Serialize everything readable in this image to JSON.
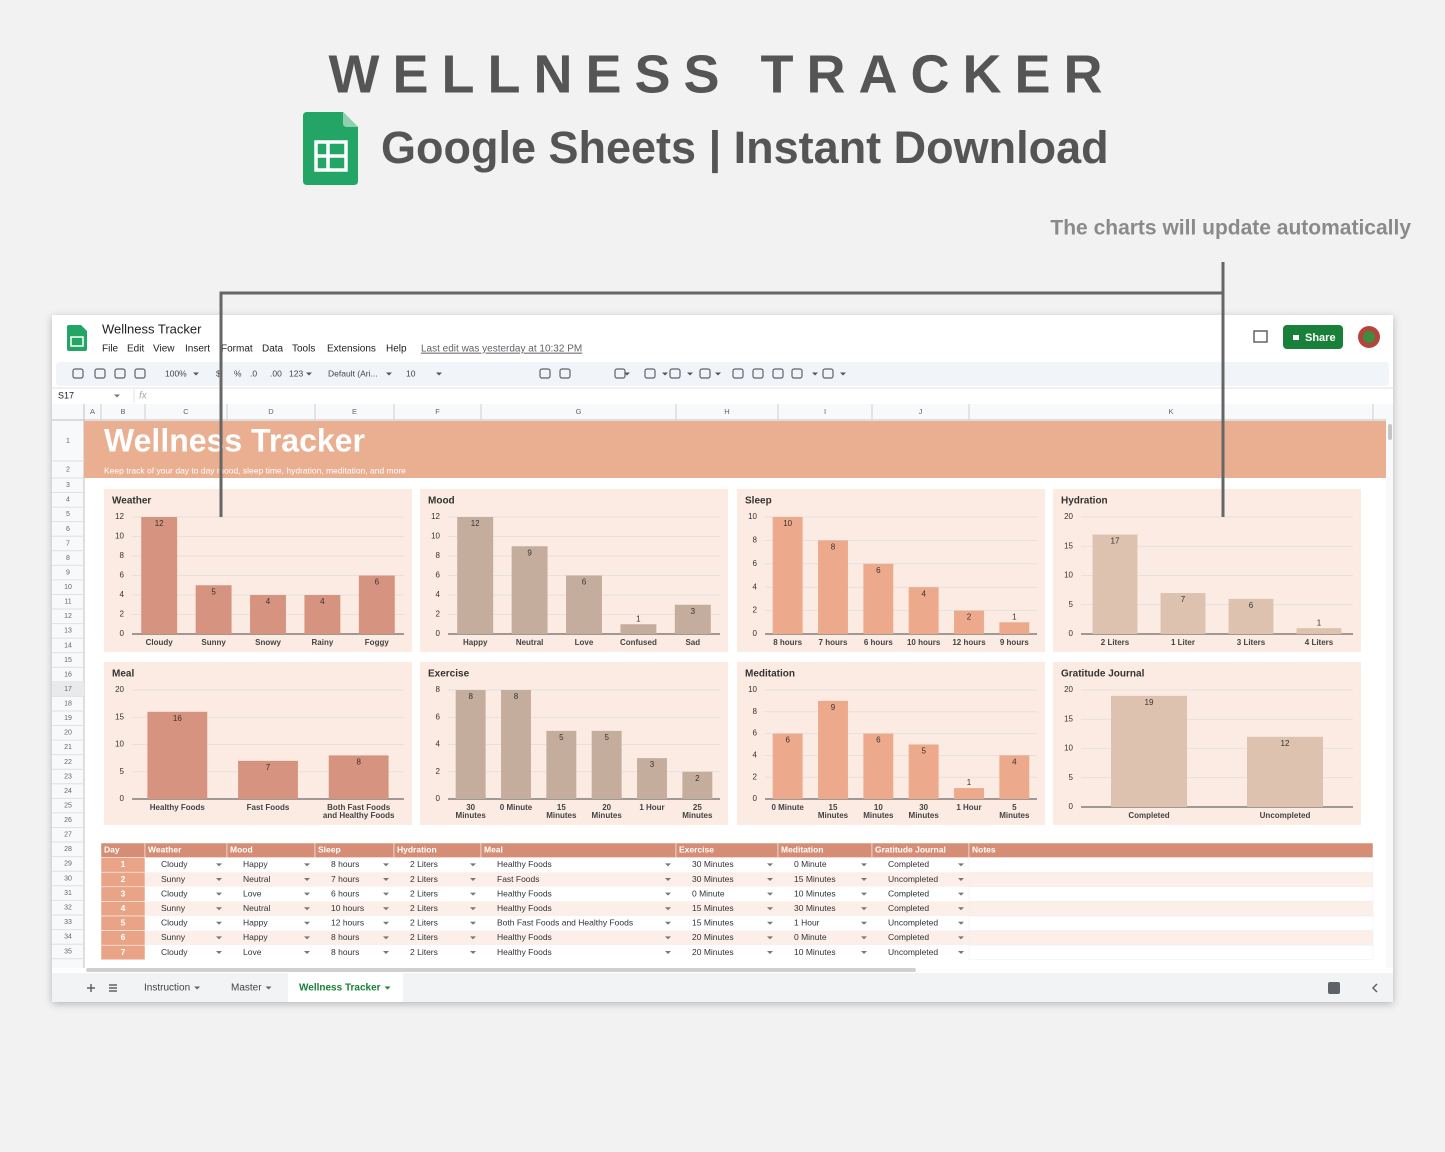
{
  "promo": {
    "title": "WELLNESS TRACKER",
    "subtitle": "Google Sheets | Instant Download",
    "note": "The charts will update automatically"
  },
  "app": {
    "doc_name": "Wellness Tracker",
    "menu": [
      "File",
      "Edit",
      "View",
      "Insert",
      "Format",
      "Data",
      "Tools",
      "Extensions",
      "Help"
    ],
    "last_edit": "Last edit was yesterday at 10:32 PM",
    "share": "Share",
    "toolbar": [
      "100%",
      "$",
      "%",
      ".0",
      ".00",
      "123",
      "Default (Ari...",
      "10"
    ],
    "name_box": "S17",
    "fx": "fx",
    "columns": [
      "A",
      "B",
      "C",
      "D",
      "E",
      "F",
      "G",
      "H",
      "I",
      "J",
      "K"
    ],
    "rows": [
      1,
      2,
      3,
      4,
      5,
      6,
      7,
      8,
      9,
      10,
      11,
      12,
      13,
      14,
      15,
      16,
      17,
      18,
      19,
      20,
      21,
      22,
      23,
      24,
      25,
      26,
      27,
      28,
      29,
      30,
      31,
      32,
      33,
      34,
      35
    ],
    "tabs": [
      "Instruction",
      "Master",
      "Wellness Tracker"
    ]
  },
  "banner": {
    "title": "Wellness Tracker",
    "subtitle": "Keep track of your day to day mood, sleep time, hydration, meditation, and more"
  },
  "chart_data": [
    {
      "type": "bar",
      "title": "Weather",
      "categories": [
        "Cloudy",
        "Sunny",
        "Snowy",
        "Rainy",
        "Foggy"
      ],
      "values": [
        12,
        5,
        4,
        4,
        6
      ],
      "color": "#d6937f",
      "ylim": [
        0,
        12
      ],
      "yticks": [
        0,
        2,
        4,
        6,
        8,
        10,
        12
      ],
      "grid": true
    },
    {
      "type": "bar",
      "title": "Mood",
      "categories": [
        "Happy",
        "Neutral",
        "Love",
        "Confused",
        "Sad"
      ],
      "values": [
        12,
        9,
        6,
        1,
        3
      ],
      "color": "#c5ad9e",
      "ylim": [
        0,
        12
      ],
      "yticks": [
        0,
        2,
        4,
        6,
        8,
        10,
        12
      ],
      "grid": true
    },
    {
      "type": "bar",
      "title": "Sleep",
      "categories": [
        "8 hours",
        "7 hours",
        "6 hours",
        "10 hours",
        "12 hours",
        "9 hours"
      ],
      "values": [
        10,
        8,
        6,
        4,
        2,
        1
      ],
      "color": "#eca98b",
      "ylim": [
        0,
        10
      ],
      "yticks": [
        0,
        2,
        4,
        6,
        8,
        10
      ],
      "grid": true
    },
    {
      "type": "bar",
      "title": "Hydration",
      "categories": [
        "2 Liters",
        "1 Liter",
        "3 Liters",
        "4 Liters"
      ],
      "values": [
        17,
        7,
        6,
        1
      ],
      "color": "#dcc2af",
      "ylim": [
        0,
        20
      ],
      "yticks": [
        0,
        5,
        10,
        15,
        20
      ],
      "grid": true
    },
    {
      "type": "bar",
      "title": "Meal",
      "categories": [
        "Healthy Foods",
        "Fast Foods",
        "Both Fast Foods and Healthy Foods"
      ],
      "values": [
        16,
        7,
        8
      ],
      "color": "#d6937f",
      "ylim": [
        0,
        20
      ],
      "yticks": [
        0,
        5,
        10,
        15,
        20
      ],
      "grid": true
    },
    {
      "type": "bar",
      "title": "Exercise",
      "categories": [
        "30 Minutes",
        "0 Minute",
        "15 Minutes",
        "20 Minutes",
        "1 Hour",
        "25 Minutes"
      ],
      "values": [
        8,
        8,
        5,
        5,
        3,
        2
      ],
      "color": "#c5ad9e",
      "ylim": [
        0,
        8
      ],
      "yticks": [
        0,
        2,
        4,
        6,
        8
      ],
      "grid": true
    },
    {
      "type": "bar",
      "title": "Meditation",
      "categories": [
        "0 Minute",
        "15 Minutes",
        "10 Minutes",
        "30 Minutes",
        "1 Hour",
        "5 Minutes"
      ],
      "values": [
        6,
        9,
        6,
        5,
        1,
        4
      ],
      "color": "#eca98b",
      "ylim": [
        0,
        10
      ],
      "yticks": [
        0,
        2,
        4,
        6,
        8,
        10
      ],
      "grid": true
    },
    {
      "type": "bar",
      "title": "Gratitude Journal",
      "categories": [
        "Completed",
        "Uncompleted"
      ],
      "values": [
        19,
        12
      ],
      "color": "#dcc2af",
      "ylim": [
        0,
        20
      ],
      "yticks": [
        0,
        5,
        10,
        15,
        20
      ],
      "grid": true
    }
  ],
  "table": {
    "header": [
      "Day",
      "Weather",
      "Mood",
      "Sleep",
      "Hydration",
      "Meal",
      "Exercise",
      "Meditation",
      "Gratitude Journal",
      "Notes"
    ],
    "rows": [
      [
        1,
        "Cloudy",
        "Happy",
        "8 hours",
        "2 Liters",
        "Healthy Foods",
        "30 Minutes",
        "0 Minute",
        "Completed"
      ],
      [
        2,
        "Sunny",
        "Neutral",
        "7 hours",
        "2 Liters",
        "Fast Foods",
        "30 Minutes",
        "15 Minutes",
        "Uncompleted"
      ],
      [
        3,
        "Cloudy",
        "Love",
        "6 hours",
        "2 Liters",
        "Healthy Foods",
        "0 Minute",
        "10 Minutes",
        "Completed"
      ],
      [
        4,
        "Sunny",
        "Neutral",
        "10 hours",
        "2 Liters",
        "Healthy Foods",
        "15 Minutes",
        "30 Minutes",
        "Completed"
      ],
      [
        5,
        "Cloudy",
        "Happy",
        "12 hours",
        "2 Liters",
        "Both Fast Foods and Healthy Foods",
        "15 Minutes",
        "1 Hour",
        "Uncompleted"
      ],
      [
        6,
        "Sunny",
        "Happy",
        "8 hours",
        "2 Liters",
        "Healthy Foods",
        "20 Minutes",
        "0 Minute",
        "Completed"
      ],
      [
        7,
        "Cloudy",
        "Love",
        "8 hours",
        "2 Liters",
        "Healthy Foods",
        "20 Minutes",
        "10 Minutes",
        "Uncompleted"
      ]
    ]
  }
}
